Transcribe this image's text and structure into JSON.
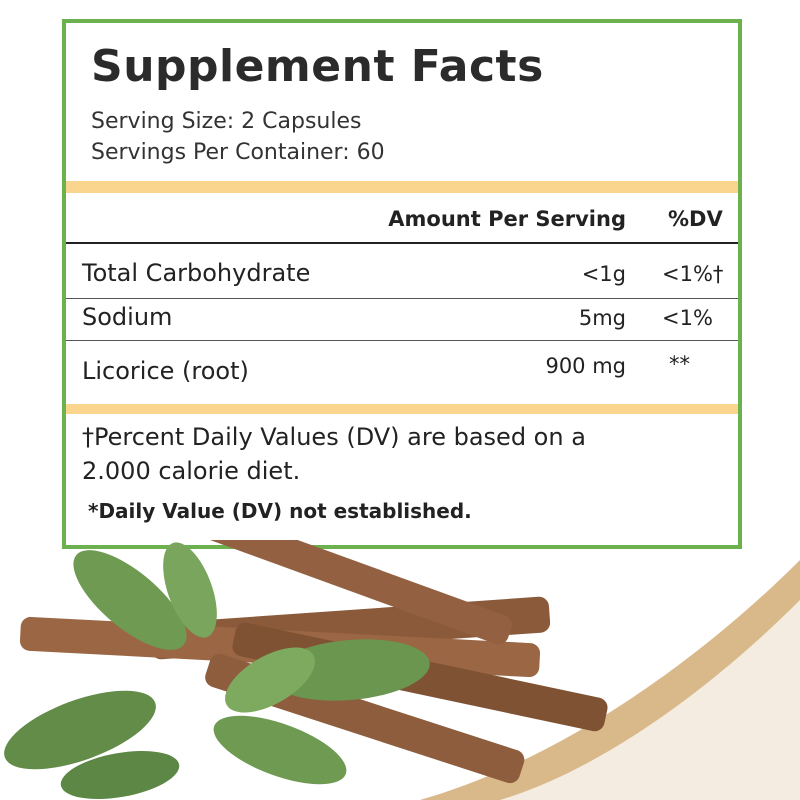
{
  "title": "Supplement Facts",
  "serving_size": "Serving Size: 2 Capsules",
  "servings_per_container": "Servings Per Container: 60",
  "table": {
    "headers": {
      "amount": "Amount Per Serving",
      "dv": "%DV"
    },
    "rows": [
      {
        "name": "Total Carbohydrate",
        "amount": "<1g",
        "dv": "<1%†"
      },
      {
        "name": "Sodium",
        "amount": "5mg",
        "dv": "<1%"
      },
      {
        "name": "Licorice (root)",
        "amount": "900 mg",
        "dv": "**"
      }
    ]
  },
  "footnote_line1": "†Percent Daily Values (DV) are based on a",
  "footnote_line2": "2.000 calorie diet.",
  "dv_note": "*Daily Value (DV) not established.",
  "colors": {
    "border": "#6bb24e",
    "band": "#f9d58e",
    "swoosh": "#d9b98a"
  }
}
